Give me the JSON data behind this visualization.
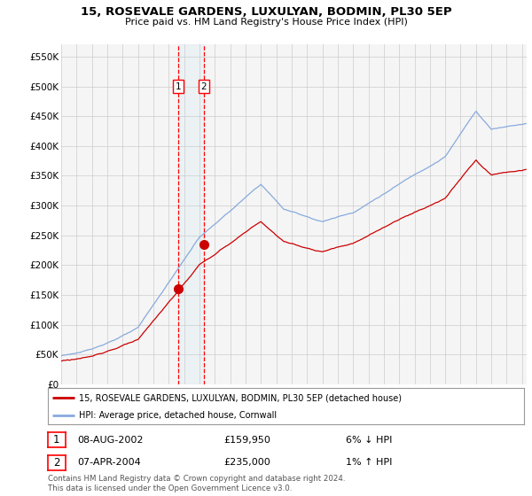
{
  "title1": "15, ROSEVALE GARDENS, LUXULYAN, BODMIN, PL30 5EP",
  "title2": "Price paid vs. HM Land Registry's House Price Index (HPI)",
  "ylabel_ticks": [
    "£0",
    "£50K",
    "£100K",
    "£150K",
    "£200K",
    "£250K",
    "£300K",
    "£350K",
    "£400K",
    "£450K",
    "£500K",
    "£550K"
  ],
  "ytick_vals": [
    0,
    50000,
    100000,
    150000,
    200000,
    250000,
    300000,
    350000,
    400000,
    450000,
    500000,
    550000
  ],
  "sale1_date": "08-AUG-2002",
  "sale1_price": 159950,
  "sale1_hpi_pct": "6% ↓ HPI",
  "sale2_date": "07-APR-2004",
  "sale2_price": 235000,
  "sale2_hpi_pct": "1% ↑ HPI",
  "legend_line1": "15, ROSEVALE GARDENS, LUXULYAN, BODMIN, PL30 5EP (detached house)",
  "legend_line2": "HPI: Average price, detached house, Cornwall",
  "footer": "Contains HM Land Registry data © Crown copyright and database right 2024.\nThis data is licensed under the Open Government Licence v3.0.",
  "line_color": "#cc0000",
  "hpi_color": "#88aadd",
  "background_color": "#ffffff",
  "grid_color": "#cccccc",
  "sale1_x": 2002.6,
  "sale2_x": 2004.27,
  "xmin": 1995,
  "xmax": 2025.3,
  "ymin": 0,
  "ymax": 570000
}
